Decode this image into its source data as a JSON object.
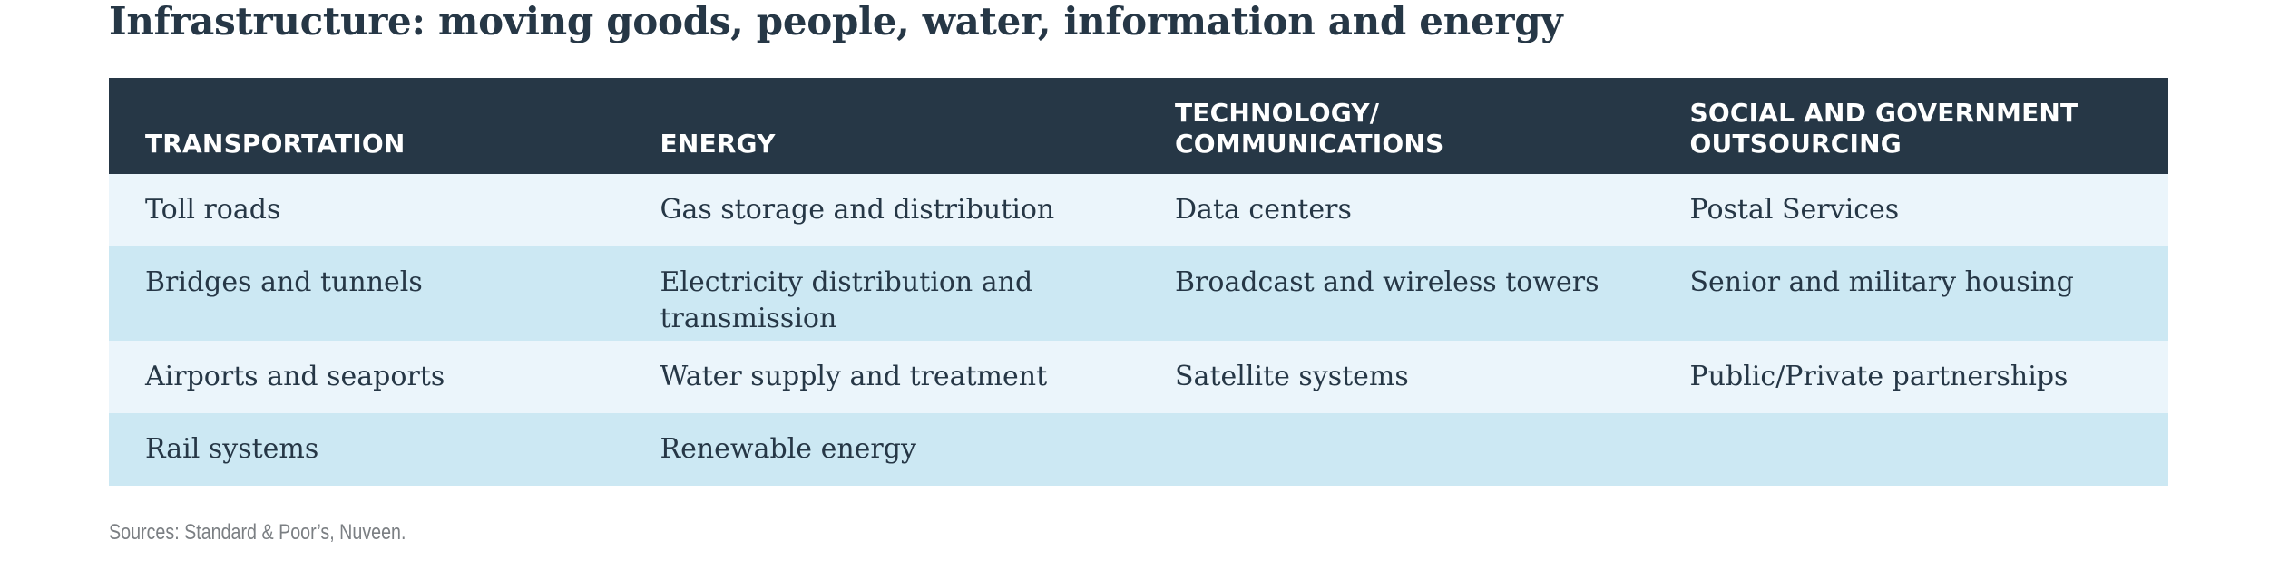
{
  "title": "Infrastructure: moving goods, people, water, information and energy",
  "table": {
    "headers": [
      "TRANSPORTATION",
      "ENERGY",
      "TECHNOLOGY/\nCOMMUNICATIONS",
      "SOCIAL AND GOVERNMENT\nOUTSOURCING"
    ],
    "rows": [
      [
        "Toll roads",
        "Gas storage and distribution",
        "Data centers",
        "Postal Services"
      ],
      [
        "Bridges and tunnels",
        "Electricity distribution and transmission",
        "Broadcast and wireless towers",
        "Senior and military housing"
      ],
      [
        "Airports and seaports",
        "Water supply and treatment",
        "Satellite systems",
        "Public/Private partnerships"
      ],
      [
        "Rail systems",
        "Renewable energy",
        "",
        ""
      ]
    ]
  },
  "source": "Sources: Standard & Poor’s, Nuveen.",
  "colors": {
    "header_bg": "#263746",
    "row_light": "#ebf5fb",
    "row_dark": "#cce8f3",
    "text": "#263746"
  }
}
